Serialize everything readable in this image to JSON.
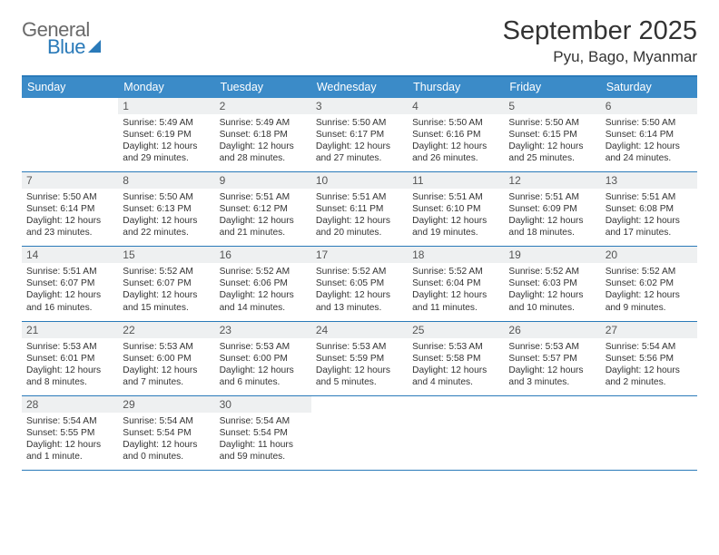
{
  "brand": {
    "word1": "General",
    "word2": "Blue"
  },
  "title": "September 2025",
  "location": "Pyu, Bago, Myanmar",
  "colors": {
    "accent": "#2a7ab9",
    "dow_bg": "#3b8bc8",
    "daynum_bg": "#eef0f1",
    "text": "#333333",
    "logo_gray": "#6a6a6a"
  },
  "days_of_week": [
    "Sunday",
    "Monday",
    "Tuesday",
    "Wednesday",
    "Thursday",
    "Friday",
    "Saturday"
  ],
  "weeks": [
    [
      {
        "n": "",
        "lines": []
      },
      {
        "n": "1",
        "lines": [
          "Sunrise: 5:49 AM",
          "Sunset: 6:19 PM",
          "Daylight: 12 hours and 29 minutes."
        ]
      },
      {
        "n": "2",
        "lines": [
          "Sunrise: 5:49 AM",
          "Sunset: 6:18 PM",
          "Daylight: 12 hours and 28 minutes."
        ]
      },
      {
        "n": "3",
        "lines": [
          "Sunrise: 5:50 AM",
          "Sunset: 6:17 PM",
          "Daylight: 12 hours and 27 minutes."
        ]
      },
      {
        "n": "4",
        "lines": [
          "Sunrise: 5:50 AM",
          "Sunset: 6:16 PM",
          "Daylight: 12 hours and 26 minutes."
        ]
      },
      {
        "n": "5",
        "lines": [
          "Sunrise: 5:50 AM",
          "Sunset: 6:15 PM",
          "Daylight: 12 hours and 25 minutes."
        ]
      },
      {
        "n": "6",
        "lines": [
          "Sunrise: 5:50 AM",
          "Sunset: 6:14 PM",
          "Daylight: 12 hours and 24 minutes."
        ]
      }
    ],
    [
      {
        "n": "7",
        "lines": [
          "Sunrise: 5:50 AM",
          "Sunset: 6:14 PM",
          "Daylight: 12 hours and 23 minutes."
        ]
      },
      {
        "n": "8",
        "lines": [
          "Sunrise: 5:50 AM",
          "Sunset: 6:13 PM",
          "Daylight: 12 hours and 22 minutes."
        ]
      },
      {
        "n": "9",
        "lines": [
          "Sunrise: 5:51 AM",
          "Sunset: 6:12 PM",
          "Daylight: 12 hours and 21 minutes."
        ]
      },
      {
        "n": "10",
        "lines": [
          "Sunrise: 5:51 AM",
          "Sunset: 6:11 PM",
          "Daylight: 12 hours and 20 minutes."
        ]
      },
      {
        "n": "11",
        "lines": [
          "Sunrise: 5:51 AM",
          "Sunset: 6:10 PM",
          "Daylight: 12 hours and 19 minutes."
        ]
      },
      {
        "n": "12",
        "lines": [
          "Sunrise: 5:51 AM",
          "Sunset: 6:09 PM",
          "Daylight: 12 hours and 18 minutes."
        ]
      },
      {
        "n": "13",
        "lines": [
          "Sunrise: 5:51 AM",
          "Sunset: 6:08 PM",
          "Daylight: 12 hours and 17 minutes."
        ]
      }
    ],
    [
      {
        "n": "14",
        "lines": [
          "Sunrise: 5:51 AM",
          "Sunset: 6:07 PM",
          "Daylight: 12 hours and 16 minutes."
        ]
      },
      {
        "n": "15",
        "lines": [
          "Sunrise: 5:52 AM",
          "Sunset: 6:07 PM",
          "Daylight: 12 hours and 15 minutes."
        ]
      },
      {
        "n": "16",
        "lines": [
          "Sunrise: 5:52 AM",
          "Sunset: 6:06 PM",
          "Daylight: 12 hours and 14 minutes."
        ]
      },
      {
        "n": "17",
        "lines": [
          "Sunrise: 5:52 AM",
          "Sunset: 6:05 PM",
          "Daylight: 12 hours and 13 minutes."
        ]
      },
      {
        "n": "18",
        "lines": [
          "Sunrise: 5:52 AM",
          "Sunset: 6:04 PM",
          "Daylight: 12 hours and 11 minutes."
        ]
      },
      {
        "n": "19",
        "lines": [
          "Sunrise: 5:52 AM",
          "Sunset: 6:03 PM",
          "Daylight: 12 hours and 10 minutes."
        ]
      },
      {
        "n": "20",
        "lines": [
          "Sunrise: 5:52 AM",
          "Sunset: 6:02 PM",
          "Daylight: 12 hours and 9 minutes."
        ]
      }
    ],
    [
      {
        "n": "21",
        "lines": [
          "Sunrise: 5:53 AM",
          "Sunset: 6:01 PM",
          "Daylight: 12 hours and 8 minutes."
        ]
      },
      {
        "n": "22",
        "lines": [
          "Sunrise: 5:53 AM",
          "Sunset: 6:00 PM",
          "Daylight: 12 hours and 7 minutes."
        ]
      },
      {
        "n": "23",
        "lines": [
          "Sunrise: 5:53 AM",
          "Sunset: 6:00 PM",
          "Daylight: 12 hours and 6 minutes."
        ]
      },
      {
        "n": "24",
        "lines": [
          "Sunrise: 5:53 AM",
          "Sunset: 5:59 PM",
          "Daylight: 12 hours and 5 minutes."
        ]
      },
      {
        "n": "25",
        "lines": [
          "Sunrise: 5:53 AM",
          "Sunset: 5:58 PM",
          "Daylight: 12 hours and 4 minutes."
        ]
      },
      {
        "n": "26",
        "lines": [
          "Sunrise: 5:53 AM",
          "Sunset: 5:57 PM",
          "Daylight: 12 hours and 3 minutes."
        ]
      },
      {
        "n": "27",
        "lines": [
          "Sunrise: 5:54 AM",
          "Sunset: 5:56 PM",
          "Daylight: 12 hours and 2 minutes."
        ]
      }
    ],
    [
      {
        "n": "28",
        "lines": [
          "Sunrise: 5:54 AM",
          "Sunset: 5:55 PM",
          "Daylight: 12 hours and 1 minute."
        ]
      },
      {
        "n": "29",
        "lines": [
          "Sunrise: 5:54 AM",
          "Sunset: 5:54 PM",
          "Daylight: 12 hours and 0 minutes."
        ]
      },
      {
        "n": "30",
        "lines": [
          "Sunrise: 5:54 AM",
          "Sunset: 5:54 PM",
          "Daylight: 11 hours and 59 minutes."
        ]
      },
      {
        "n": "",
        "lines": []
      },
      {
        "n": "",
        "lines": []
      },
      {
        "n": "",
        "lines": []
      },
      {
        "n": "",
        "lines": []
      }
    ]
  ]
}
